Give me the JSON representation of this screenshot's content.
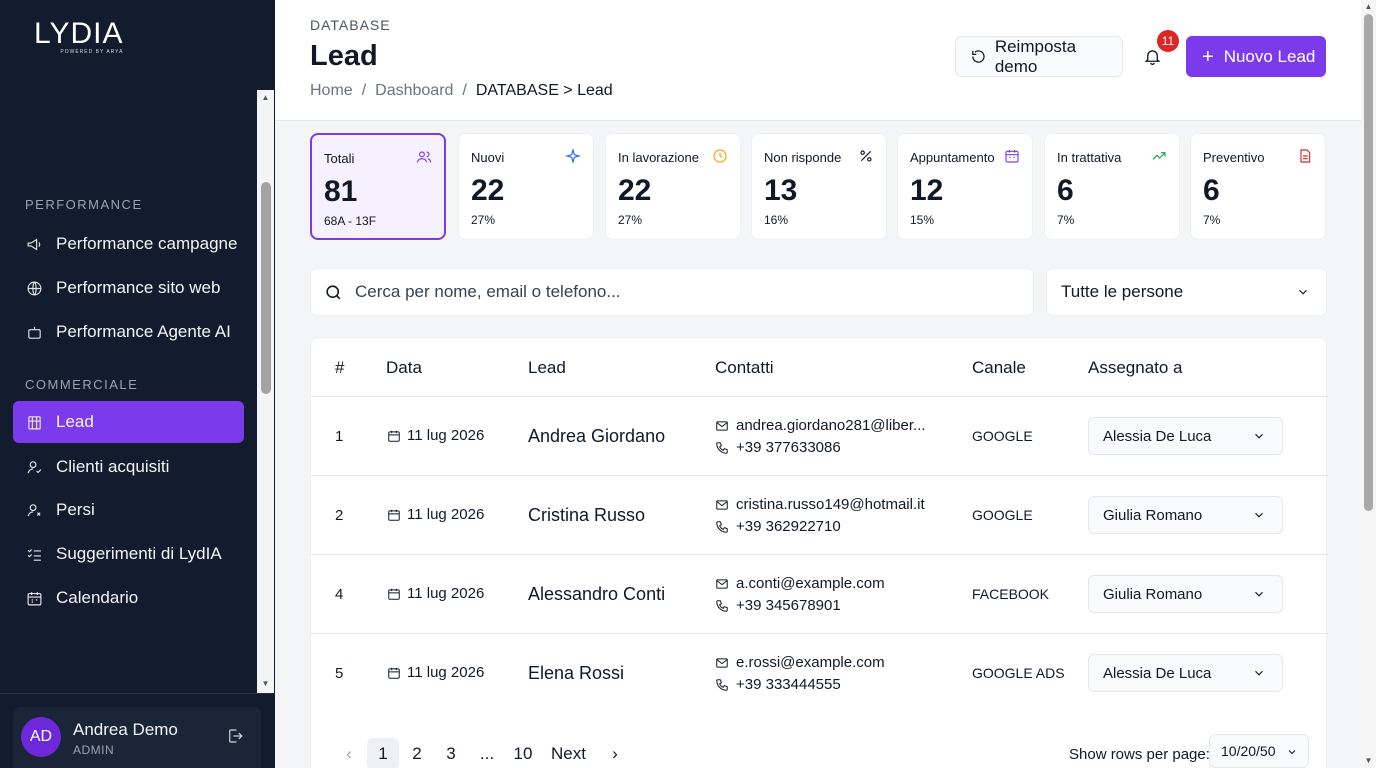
{
  "brand": {
    "name": "LYDIA",
    "tagline": "POWERED BY ARYA"
  },
  "sidebar": {
    "sections": [
      {
        "label": "PERFORMANCE"
      },
      {
        "label": "COMMERCIALE"
      }
    ],
    "items": [
      {
        "label": "Performance campagne",
        "icon": "megaphone-icon"
      },
      {
        "label": "Performance sito web",
        "icon": "globe-icon"
      },
      {
        "label": "Performance Agente AI",
        "icon": "bot-icon"
      },
      {
        "label": "Lead",
        "icon": "building-icon",
        "active": true
      },
      {
        "label": "Clienti acquisiti",
        "icon": "user-check-icon"
      },
      {
        "label": "Persi",
        "icon": "user-x-icon"
      },
      {
        "label": "Suggerimenti di LydIA",
        "icon": "list-check-icon"
      },
      {
        "label": "Calendario",
        "icon": "calendar-icon"
      }
    ],
    "user": {
      "initials": "AD",
      "name": "Andrea Demo",
      "role": "ADMIN"
    }
  },
  "header": {
    "eyebrow": "DATABASE",
    "title": "Lead",
    "breadcrumb": [
      "Home",
      "/",
      "Dashboard",
      "/",
      "DATABASE > Lead"
    ],
    "reset_label": "Reimposta demo",
    "notifications": "11",
    "new_label": "Nuovo Lead",
    "accent": "#7c3aed"
  },
  "stats": [
    {
      "label": "Totali",
      "value": "81",
      "sub": "68A - 13F",
      "icon": "users-icon",
      "color": "#7c3aed"
    },
    {
      "label": "Nuovi",
      "value": "22",
      "sub": "27%",
      "icon": "sparkle-icon",
      "color": "#2563eb"
    },
    {
      "label": "In lavorazione",
      "value": "22",
      "sub": "27%",
      "icon": "clock-icon",
      "color": "#f59e0b"
    },
    {
      "label": "Non risponde",
      "value": "13",
      "sub": "16%",
      "icon": "percent-icon",
      "color": "#111827"
    },
    {
      "label": "Appuntamento",
      "value": "12",
      "sub": "15%",
      "icon": "calendar-icon",
      "color": "#7c3aed"
    },
    {
      "label": "In trattativa",
      "value": "6",
      "sub": "7%",
      "icon": "trend-up-icon",
      "color": "#16a34a"
    },
    {
      "label": "Preventivo",
      "value": "6",
      "sub": "7%",
      "icon": "file-icon",
      "color": "#dc2626"
    }
  ],
  "search": {
    "placeholder": "Cerca per nome, email o telefono..."
  },
  "filter": {
    "value": "Tutte le persone"
  },
  "table": {
    "columns": [
      "#",
      "Data",
      "Lead",
      "Contatti",
      "Canale",
      "Assegnato a"
    ],
    "rows": [
      {
        "num": "1",
        "date": "11 lug 2026",
        "name": "Andrea Giordano",
        "email": "andrea.giordano281@liber...",
        "phone": "+39 377633086",
        "channel": "GOOGLE",
        "assignee": "Alessia De Luca"
      },
      {
        "num": "2",
        "date": "11 lug 2026",
        "name": "Cristina Russo",
        "email": "cristina.russo149@hotmail.it",
        "phone": "+39 362922710",
        "channel": "GOOGLE",
        "assignee": "Giulia Romano"
      },
      {
        "num": "4",
        "date": "11 lug 2026",
        "name": "Alessandro Conti",
        "email": "a.conti@example.com",
        "phone": "+39 345678901",
        "channel": "FACEBOOK",
        "assignee": "Giulia Romano"
      },
      {
        "num": "5",
        "date": "11 lug 2026",
        "name": "Elena Rossi",
        "email": "e.rossi@example.com",
        "phone": "+39 333444555",
        "channel": "GOOGLE ADS",
        "assignee": "Alessia De Luca"
      }
    ]
  },
  "pagination": {
    "pages": [
      "1",
      "2",
      "3",
      "...",
      "10"
    ],
    "current": "1",
    "next_label": "Next",
    "rows_label": "Show rows per page:",
    "rows_value": "10/20/50"
  }
}
